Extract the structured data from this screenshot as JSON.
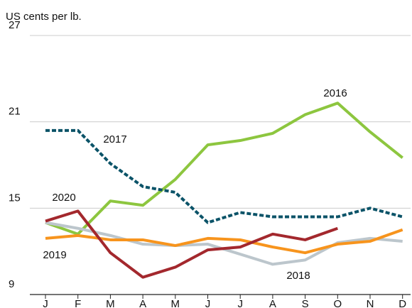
{
  "chart_data": {
    "type": "line",
    "y_label": "US cents per lb.",
    "categories": [
      "J",
      "F",
      "M",
      "A",
      "M",
      "J",
      "J",
      "A",
      "S",
      "O",
      "N",
      "D"
    ],
    "series": [
      {
        "name": "2016",
        "color": "#8dc63f",
        "dashed": false,
        "values": [
          14.0,
          13.2,
          15.5,
          15.2,
          17.0,
          19.4,
          19.7,
          20.2,
          21.5,
          22.3,
          20.3,
          18.5
        ]
      },
      {
        "name": "2017",
        "color": "#0b5368",
        "dashed": true,
        "values": [
          20.4,
          20.4,
          18.1,
          16.5,
          16.1,
          14.0,
          14.7,
          14.4,
          14.4,
          14.4,
          15.0,
          14.4
        ]
      },
      {
        "name": "2018",
        "color": "#bcc6cc",
        "dashed": false,
        "values": [
          14.0,
          13.6,
          13.1,
          12.5,
          12.4,
          12.5,
          11.8,
          11.1,
          11.4,
          12.6,
          12.9,
          12.7
        ]
      },
      {
        "name": "2019",
        "color": "#f7941d",
        "dashed": false,
        "values": [
          12.9,
          13.1,
          12.8,
          12.8,
          12.4,
          12.9,
          12.8,
          12.3,
          11.9,
          12.5,
          12.7,
          13.5
        ]
      },
      {
        "name": "2020",
        "color": "#a3282d",
        "dashed": false,
        "values": [
          14.1,
          14.8,
          11.9,
          10.2,
          10.9,
          12.1,
          12.3,
          13.2,
          12.8,
          13.6,
          null,
          null
        ]
      }
    ],
    "ylim": [
      9,
      27
    ],
    "yticks": [
      9,
      15,
      21,
      27
    ],
    "grid": true
  }
}
